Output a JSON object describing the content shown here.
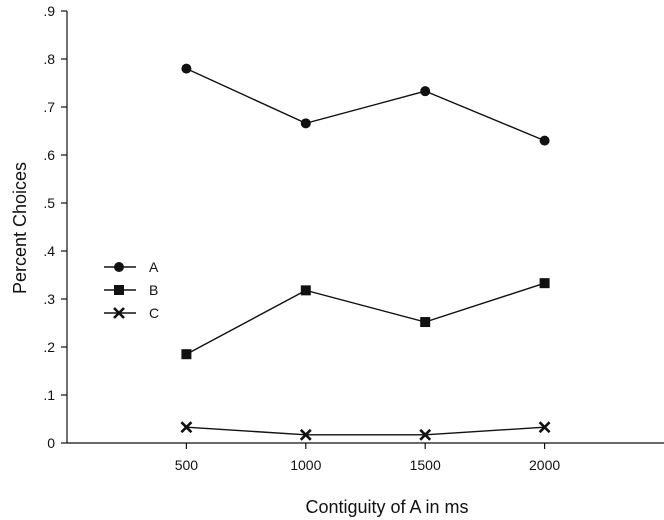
{
  "chart_data": {
    "type": "line",
    "xlabel": "Contiguity of A in ms",
    "ylabel": "Percent Choices",
    "x": [
      500,
      1000,
      1500,
      2000
    ],
    "x_tick_labels": [
      "500",
      "1000",
      "1500",
      "2000"
    ],
    "xlim": [
      0,
      2500
    ],
    "ylim": [
      0,
      0.9
    ],
    "y_ticks": [
      0,
      0.1,
      0.2,
      0.3,
      0.4,
      0.5,
      0.6,
      0.7,
      0.8,
      0.9
    ],
    "y_tick_labels": [
      "0",
      ".1",
      ".2",
      ".3",
      ".4",
      ".5",
      ".6",
      ".7",
      ".8",
      ".9"
    ],
    "grid": false,
    "legend_position": "middle-left",
    "series": [
      {
        "name": "A",
        "marker": "circle",
        "values": [
          0.78,
          0.666,
          0.733,
          0.63
        ]
      },
      {
        "name": "B",
        "marker": "square",
        "values": [
          0.185,
          0.318,
          0.252,
          0.333
        ]
      },
      {
        "name": "C",
        "marker": "x",
        "values": [
          0.033,
          0.017,
          0.017,
          0.033
        ]
      }
    ],
    "colors": {
      "line": "#111111",
      "axis": "#111111"
    }
  }
}
